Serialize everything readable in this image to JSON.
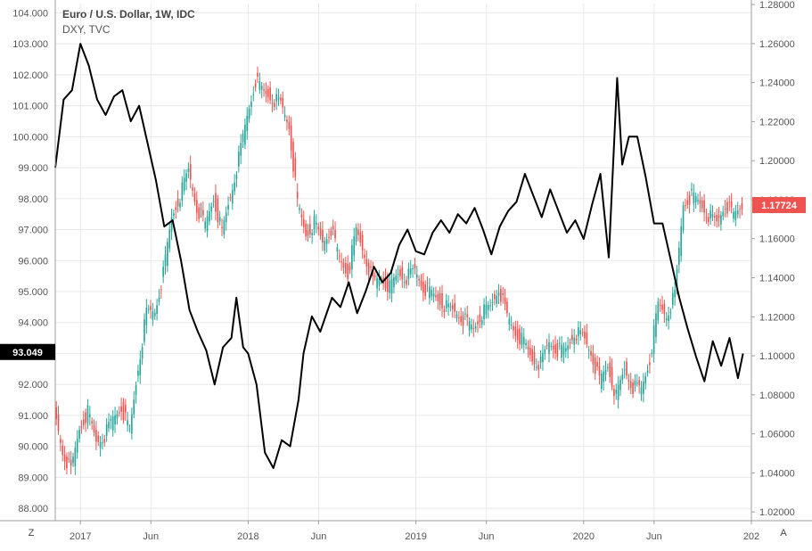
{
  "legend": {
    "primary": "Euro / U.S. Dollar, 1W, IDC",
    "secondary": "DXY, TVC"
  },
  "buttons": {
    "zoom_label": "Z",
    "auto_label": "A"
  },
  "colors": {
    "up": "#26a69a",
    "down": "#ef5350",
    "dxy_line": "#000000",
    "grid": "#e8e8e8",
    "axis_text": "#555555",
    "left_badge_bg": "#000000",
    "right_badge_bg": "#ef5350"
  },
  "chart_data": {
    "type": "line",
    "x_ticks": [
      "2017",
      "Jun",
      "2018",
      "Jun",
      "2019",
      "Jun",
      "2020",
      "Jun",
      "202"
    ],
    "left_axis": {
      "ticks": [
        "88.000",
        "89.000",
        "90.000",
        "91.000",
        "92.000",
        "93.000",
        "94.000",
        "95.000",
        "96.000",
        "97.000",
        "98.000",
        "99.000",
        "100.000",
        "101.000",
        "102.000",
        "103.000",
        "104.000"
      ],
      "range": [
        87.6,
        104.3
      ],
      "last_value": "93.049"
    },
    "right_axis": {
      "ticks": [
        "1.02000",
        "1.04000",
        "1.06000",
        "1.08000",
        "1.10000",
        "1.12000",
        "1.14000",
        "1.16000",
        "1.18000",
        "1.20000",
        "1.22000",
        "1.24000",
        "1.26000",
        "1.28000"
      ],
      "range": [
        1.0155,
        1.2805
      ],
      "last_value": "1.17724"
    },
    "time_range": [
      2016.85,
      2021.0
    ],
    "series": [
      {
        "type": "line",
        "axis": "left",
        "points": [
          [
            2016.85,
            99.0
          ],
          [
            2016.9,
            101.2
          ],
          [
            2016.95,
            101.5
          ],
          [
            2017.0,
            103.0
          ],
          [
            2017.05,
            102.3
          ],
          [
            2017.1,
            101.2
          ],
          [
            2017.15,
            100.7
          ],
          [
            2017.2,
            101.3
          ],
          [
            2017.25,
            101.5
          ],
          [
            2017.3,
            100.5
          ],
          [
            2017.35,
            101.0
          ],
          [
            2017.4,
            99.8
          ],
          [
            2017.45,
            98.6
          ],
          [
            2017.5,
            97.1
          ],
          [
            2017.55,
            97.3
          ],
          [
            2017.6,
            96.0
          ],
          [
            2017.65,
            94.4
          ],
          [
            2017.7,
            93.7
          ],
          [
            2017.75,
            93.1
          ],
          [
            2017.8,
            92.0
          ],
          [
            2017.85,
            93.2
          ],
          [
            2017.9,
            93.5
          ],
          [
            2017.93,
            94.8
          ],
          [
            2017.97,
            93.2
          ],
          [
            2018.0,
            93.0
          ],
          [
            2018.05,
            92.0
          ],
          [
            2018.1,
            89.8
          ],
          [
            2018.15,
            89.3
          ],
          [
            2018.2,
            90.2
          ],
          [
            2018.25,
            90.0
          ],
          [
            2018.3,
            91.5
          ],
          [
            2018.33,
            93.0
          ],
          [
            2018.38,
            94.2
          ],
          [
            2018.43,
            93.7
          ],
          [
            2018.5,
            94.8
          ],
          [
            2018.55,
            94.5
          ],
          [
            2018.6,
            95.3
          ],
          [
            2018.65,
            94.3
          ],
          [
            2018.7,
            95.0
          ],
          [
            2018.75,
            95.8
          ],
          [
            2018.8,
            95.3
          ],
          [
            2018.85,
            95.6
          ],
          [
            2018.9,
            96.5
          ],
          [
            2018.95,
            97.0
          ],
          [
            2019.0,
            96.3
          ],
          [
            2019.05,
            96.2
          ],
          [
            2019.1,
            96.9
          ],
          [
            2019.15,
            97.3
          ],
          [
            2019.2,
            96.9
          ],
          [
            2019.25,
            97.5
          ],
          [
            2019.3,
            97.2
          ],
          [
            2019.35,
            97.7
          ],
          [
            2019.4,
            97.0
          ],
          [
            2019.45,
            96.2
          ],
          [
            2019.5,
            97.1
          ],
          [
            2019.55,
            97.6
          ],
          [
            2019.6,
            97.9
          ],
          [
            2019.65,
            98.8
          ],
          [
            2019.7,
            98.1
          ],
          [
            2019.75,
            97.4
          ],
          [
            2019.8,
            98.3
          ],
          [
            2019.85,
            97.6
          ],
          [
            2019.9,
            96.9
          ],
          [
            2019.95,
            97.3
          ],
          [
            2020.0,
            96.7
          ],
          [
            2020.05,
            97.8
          ],
          [
            2020.1,
            98.8
          ],
          [
            2020.15,
            96.1
          ],
          [
            2020.2,
            101.9
          ],
          [
            2020.23,
            99.1
          ],
          [
            2020.27,
            100.0
          ],
          [
            2020.32,
            100.0
          ],
          [
            2020.37,
            98.7
          ],
          [
            2020.42,
            97.2
          ],
          [
            2020.47,
            97.2
          ],
          [
            2020.52,
            96.0
          ],
          [
            2020.57,
            94.8
          ],
          [
            2020.62,
            93.8
          ],
          [
            2020.67,
            92.9
          ],
          [
            2020.72,
            92.1
          ],
          [
            2020.77,
            93.4
          ],
          [
            2020.82,
            92.6
          ],
          [
            2020.87,
            93.5
          ],
          [
            2020.92,
            92.2
          ],
          [
            2020.95,
            93.0
          ]
        ]
      },
      {
        "type": "candlestick",
        "axis": "right",
        "points": [
          [
            2016.85,
            1.072
          ],
          [
            2016.9,
            1.051
          ],
          [
            2016.95,
            1.041
          ],
          [
            2017.0,
            1.063
          ],
          [
            2017.05,
            1.071
          ],
          [
            2017.1,
            1.056
          ],
          [
            2017.15,
            1.059
          ],
          [
            2017.2,
            1.068
          ],
          [
            2017.25,
            1.074
          ],
          [
            2017.3,
            1.061
          ],
          [
            2017.35,
            1.094
          ],
          [
            2017.4,
            1.122
          ],
          [
            2017.45,
            1.123
          ],
          [
            2017.5,
            1.142
          ],
          [
            2017.55,
            1.171
          ],
          [
            2017.6,
            1.182
          ],
          [
            2017.65,
            1.195
          ],
          [
            2017.7,
            1.176
          ],
          [
            2017.75,
            1.167
          ],
          [
            2017.8,
            1.181
          ],
          [
            2017.85,
            1.163
          ],
          [
            2017.9,
            1.182
          ],
          [
            2017.95,
            1.201
          ],
          [
            2018.0,
            1.223
          ],
          [
            2018.05,
            1.241
          ],
          [
            2018.1,
            1.235
          ],
          [
            2018.15,
            1.232
          ],
          [
            2018.2,
            1.229
          ],
          [
            2018.25,
            1.218
          ],
          [
            2018.3,
            1.178
          ],
          [
            2018.35,
            1.162
          ],
          [
            2018.4,
            1.168
          ],
          [
            2018.45,
            1.158
          ],
          [
            2018.5,
            1.165
          ],
          [
            2018.55,
            1.15
          ],
          [
            2018.6,
            1.142
          ],
          [
            2018.65,
            1.164
          ],
          [
            2018.7,
            1.152
          ],
          [
            2018.75,
            1.138
          ],
          [
            2018.8,
            1.14
          ],
          [
            2018.85,
            1.135
          ],
          [
            2018.9,
            1.142
          ],
          [
            2018.95,
            1.14
          ],
          [
            2019.0,
            1.144
          ],
          [
            2019.05,
            1.135
          ],
          [
            2019.1,
            1.132
          ],
          [
            2019.15,
            1.128
          ],
          [
            2019.2,
            1.124
          ],
          [
            2019.25,
            1.122
          ],
          [
            2019.3,
            1.118
          ],
          [
            2019.35,
            1.114
          ],
          [
            2019.4,
            1.122
          ],
          [
            2019.45,
            1.125
          ],
          [
            2019.5,
            1.135
          ],
          [
            2019.55,
            1.12
          ],
          [
            2019.6,
            1.112
          ],
          [
            2019.65,
            1.107
          ],
          [
            2019.7,
            1.098
          ],
          [
            2019.75,
            1.096
          ],
          [
            2019.8,
            1.107
          ],
          [
            2019.85,
            1.103
          ],
          [
            2019.9,
            1.103
          ],
          [
            2019.95,
            1.112
          ],
          [
            2020.0,
            1.11
          ],
          [
            2020.05,
            1.102
          ],
          [
            2020.1,
            1.087
          ],
          [
            2020.15,
            1.095
          ],
          [
            2020.2,
            1.079
          ],
          [
            2020.25,
            1.093
          ],
          [
            2020.3,
            1.084
          ],
          [
            2020.35,
            1.083
          ],
          [
            2020.4,
            1.098
          ],
          [
            2020.45,
            1.126
          ],
          [
            2020.5,
            1.121
          ],
          [
            2020.55,
            1.131
          ],
          [
            2020.6,
            1.178
          ],
          [
            2020.65,
            1.182
          ],
          [
            2020.7,
            1.178
          ],
          [
            2020.75,
            1.172
          ],
          [
            2020.8,
            1.168
          ],
          [
            2020.85,
            1.178
          ],
          [
            2020.9,
            1.172
          ],
          [
            2020.95,
            1.177
          ]
        ]
      }
    ]
  }
}
